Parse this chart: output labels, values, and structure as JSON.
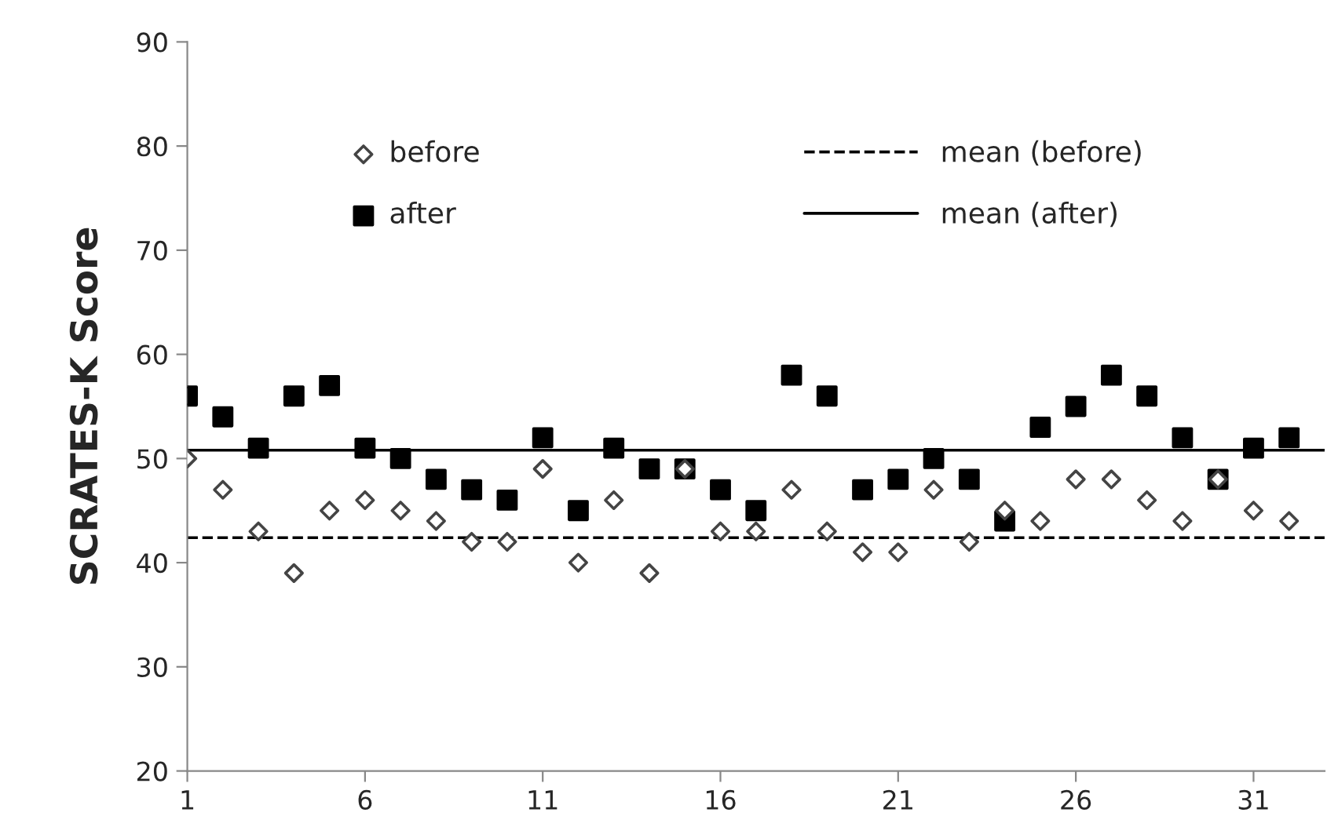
{
  "chart_data": {
    "type": "scatter",
    "ylabel": "SCRATES-K Score",
    "x": [
      1,
      2,
      3,
      4,
      5,
      6,
      7,
      8,
      9,
      10,
      11,
      12,
      13,
      14,
      15,
      16,
      17,
      18,
      19,
      20,
      21,
      22,
      23,
      24,
      25,
      26,
      27,
      28,
      29,
      30,
      31,
      32
    ],
    "series": [
      {
        "name": "before",
        "color": "#ffffff",
        "marker": "diamond",
        "values": [
          50,
          47,
          43,
          39,
          45,
          46,
          45,
          44,
          42,
          42,
          49,
          40,
          46,
          39,
          49,
          43,
          43,
          47,
          43,
          41,
          41,
          47,
          42,
          45,
          44,
          48,
          48,
          46,
          44,
          48,
          45,
          44
        ]
      },
      {
        "name": "after",
        "color": "#000000",
        "marker": "square",
        "values": [
          56,
          54,
          51,
          56,
          57,
          51,
          50,
          48,
          47,
          46,
          52,
          45,
          51,
          49,
          49,
          47,
          45,
          58,
          56,
          47,
          48,
          50,
          48,
          44,
          53,
          55,
          58,
          56,
          52,
          48,
          51,
          52
        ]
      }
    ],
    "ref_lines": [
      {
        "axis": "y",
        "value": 42.4,
        "label": "mean (before)",
        "line_style": "dashed",
        "color": "#000000"
      },
      {
        "axis": "y",
        "value": 50.8,
        "label": "mean (after)",
        "line_style": "solid",
        "color": "#000000"
      }
    ],
    "xlim": [
      1,
      33
    ],
    "xticks": [
      1,
      6,
      11,
      16,
      21,
      26,
      31
    ],
    "ylim": [
      20,
      90
    ],
    "yticks": [
      20,
      30,
      40,
      50,
      60,
      70,
      80,
      90
    ],
    "grid": false,
    "legend": "top"
  }
}
